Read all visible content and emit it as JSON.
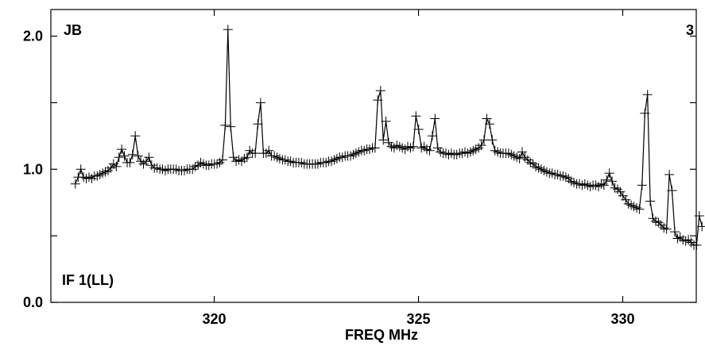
{
  "chart_data": {
    "type": "line",
    "xlabel": "FREQ MHz",
    "ylabel": "",
    "xlim": [
      316.0,
      331.8
    ],
    "ylim": [
      0.0,
      2.2
    ],
    "x_ticks": [
      320,
      325,
      330
    ],
    "x_tick_labels": [
      "320",
      "325",
      "330"
    ],
    "y_ticks": [
      0.0,
      0.5,
      1.0,
      1.5,
      2.0
    ],
    "y_tick_labels": [
      "0.0",
      "",
      "1.0",
      "",
      "2.0"
    ],
    "annotations": {
      "top_left": "JB",
      "top_right": "3",
      "bottom_left": "IF 1(LL)"
    },
    "grid": false,
    "legend": "none",
    "marker": "plus",
    "series": [
      {
        "x_start": 316.6,
        "x_step": 0.0667,
        "values": [
          0.89,
          0.94,
          1.0,
          0.94,
          0.93,
          0.94,
          0.93,
          0.95,
          0.95,
          0.96,
          0.97,
          0.98,
          0.99,
          1.01,
          1.04,
          1.02,
          1.09,
          1.15,
          1.1,
          1.05,
          1.05,
          1.11,
          1.25,
          1.1,
          1.06,
          1.04,
          1.06,
          1.09,
          1.03,
          1.01,
          1.01,
          1.0,
          1.0,
          0.99,
          1.0,
          1.0,
          1.0,
          1.0,
          0.99,
          0.99,
          0.99,
          1.0,
          1.0,
          1.0,
          1.02,
          1.03,
          1.05,
          1.04,
          1.03,
          1.03,
          1.04,
          1.04,
          1.04,
          1.05,
          1.07,
          1.33,
          2.05,
          1.32,
          1.09,
          1.06,
          1.07,
          1.06,
          1.08,
          1.09,
          1.14,
          1.12,
          1.12,
          1.34,
          1.5,
          1.12,
          1.12,
          1.14,
          1.1,
          1.1,
          1.09,
          1.08,
          1.07,
          1.07,
          1.06,
          1.06,
          1.05,
          1.05,
          1.05,
          1.05,
          1.04,
          1.04,
          1.04,
          1.04,
          1.04,
          1.04,
          1.05,
          1.05,
          1.05,
          1.06,
          1.06,
          1.07,
          1.08,
          1.09,
          1.09,
          1.1,
          1.1,
          1.1,
          1.11,
          1.12,
          1.13,
          1.14,
          1.14,
          1.15,
          1.15,
          1.16,
          1.16,
          1.52,
          1.59,
          1.22,
          1.36,
          1.2,
          1.17,
          1.16,
          1.18,
          1.17,
          1.16,
          1.15,
          1.17,
          1.16,
          1.17,
          1.4,
          1.3,
          1.16,
          1.17,
          1.15,
          1.14,
          1.25,
          1.38,
          1.16,
          1.13,
          1.12,
          1.12,
          1.11,
          1.12,
          1.11,
          1.11,
          1.12,
          1.12,
          1.13,
          1.12,
          1.13,
          1.14,
          1.15,
          1.16,
          1.18,
          1.22,
          1.38,
          1.34,
          1.22,
          1.14,
          1.13,
          1.12,
          1.12,
          1.12,
          1.12,
          1.11,
          1.1,
          1.09,
          1.08,
          1.13,
          1.09,
          1.07,
          1.05,
          1.04,
          1.02,
          1.01,
          1.0,
          0.99,
          0.98,
          0.97,
          0.97,
          0.96,
          0.96,
          0.95,
          0.95,
          0.94,
          0.93,
          0.91,
          0.9,
          0.89,
          0.89,
          0.88,
          0.89,
          0.88,
          0.87,
          0.88,
          0.88,
          0.87,
          0.89,
          0.88,
          0.92,
          0.97,
          0.91,
          0.86,
          0.85,
          0.83,
          0.8,
          0.77,
          0.74,
          0.73,
          0.72,
          0.71,
          0.7,
          0.88,
          1.42,
          1.56,
          0.76,
          0.63,
          0.61,
          0.6,
          0.58,
          0.56,
          0.55,
          0.96,
          0.84,
          0.53,
          0.48,
          0.49,
          0.47,
          0.46,
          0.47,
          0.45,
          0.43,
          0.43,
          0.65,
          0.57
        ]
      }
    ]
  }
}
